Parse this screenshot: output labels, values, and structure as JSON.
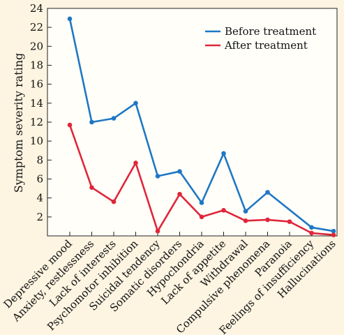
{
  "chart_data": {
    "type": "line",
    "title": "",
    "xlabel": "",
    "ylabel": "Symptom severity rating",
    "ylim": [
      0,
      24
    ],
    "yticks": [
      2,
      4,
      6,
      8,
      10,
      12,
      14,
      16,
      18,
      20,
      22,
      24
    ],
    "grid": false,
    "legend_position": "top-right",
    "categories": [
      "Depressive mood",
      "Anxiety, restlessness",
      "Lack of interests",
      "Psychomotor inhibition",
      "Suicidal tendency",
      "Somatic disorders",
      "Hypochondria",
      "Lack of appetite",
      "Withdrawal",
      "Compulsive phenomena",
      "Paranoia",
      "Feelings of insufficiency",
      "Hallucinations"
    ],
    "series": [
      {
        "name": "Before treatment",
        "color": "#1f77c4",
        "values": [
          22.9,
          12.0,
          12.4,
          14.0,
          6.3,
          6.8,
          3.5,
          8.7,
          2.6,
          4.6,
          null,
          0.9,
          0.5
        ]
      },
      {
        "name": "After treatment",
        "color": "#e0263a",
        "values": [
          11.7,
          5.1,
          3.6,
          7.7,
          0.5,
          4.4,
          2.0,
          2.7,
          1.6,
          1.7,
          1.5,
          0.3,
          0.1
        ]
      }
    ]
  }
}
